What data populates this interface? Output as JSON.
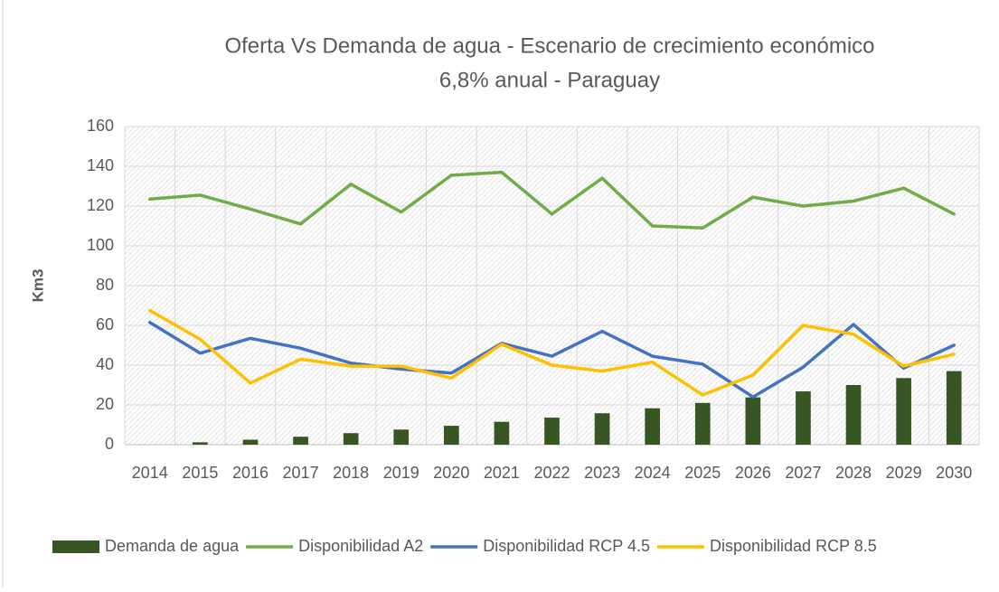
{
  "chart_data": {
    "type": "combo",
    "title": [
      "Oferta Vs Demanda de agua - Escenario de crecimiento económico",
      "6,8% anual - Paraguay"
    ],
    "y_label": "Km3",
    "categories": [
      "2014",
      "2015",
      "2016",
      "2017",
      "2018",
      "2019",
      "2020",
      "2021",
      "2022",
      "2023",
      "2024",
      "2025",
      "2026",
      "2027",
      "2028",
      "2029",
      "2030"
    ],
    "series": [
      {
        "name": "Demanda de agua",
        "kind": "bar",
        "color": "#375623",
        "values": [
          0,
          1.2,
          2.5,
          4,
          5.8,
          7.6,
          9.5,
          11.5,
          13.6,
          15.8,
          18.3,
          21,
          23.8,
          26.8,
          30,
          33.5,
          37
        ]
      },
      {
        "name": "Disponibilidad A2",
        "kind": "line",
        "color": "#70ad47",
        "values": [
          123.5,
          125.5,
          118.5,
          111,
          131,
          117,
          135.5,
          137,
          116,
          134,
          110,
          109,
          124.5,
          120,
          122.5,
          129,
          116
        ]
      },
      {
        "name": "Disponibilidad RCP 4.5",
        "kind": "line",
        "color": "#4472c4",
        "values": [
          61.5,
          46,
          53.5,
          48.5,
          41,
          38,
          36,
          51,
          44.5,
          57,
          44.5,
          40.5,
          24,
          39,
          60.5,
          38.5,
          50
        ]
      },
      {
        "name": "Disponibilidad RCP 8.5",
        "kind": "line",
        "color": "#ffc000",
        "values": [
          67.5,
          53,
          31,
          43,
          39.5,
          39.5,
          33.5,
          50.5,
          40,
          37,
          41.5,
          25,
          35,
          60,
          55.5,
          39.5,
          45.5
        ]
      }
    ],
    "ylim": [
      0,
      160
    ],
    "yticks": [
      0,
      20,
      40,
      60,
      80,
      100,
      120,
      140,
      160
    ],
    "grid": true,
    "legend": "bottom"
  }
}
